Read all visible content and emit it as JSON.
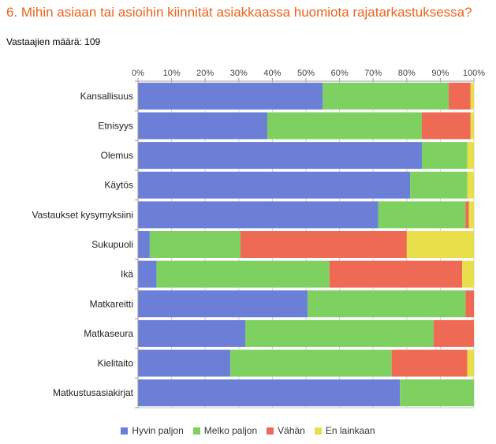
{
  "title": "6. Mihin asiaan tai asioihin kiinnität asiakkaassa huomiota rajatarkastuksessa?",
  "respondents": "Vastaajien määrä: 109",
  "chart_data": {
    "type": "bar",
    "orientation": "horizontal",
    "stacked": "percent",
    "xlim": [
      0,
      100
    ],
    "x_ticks": [
      "0%",
      "10%",
      "20%",
      "30%",
      "40%",
      "50%",
      "60%",
      "70%",
      "80%",
      "90%",
      "100%"
    ],
    "grid": true,
    "legend_position": "bottom",
    "categories": [
      "Kansallisuus",
      "Etnisyys",
      "Olemus",
      "Käytös",
      "Vastaukset kysymyksiini",
      "Sukupuoli",
      "Ikä",
      "Matkareitti",
      "Matkaseura",
      "Kielitaito",
      "Matkustusasiakirjat"
    ],
    "series": [
      {
        "name": "Hyvin paljon",
        "color": "#6b7fd6",
        "values": [
          55,
          38.5,
          84.5,
          81,
          71.5,
          3.5,
          5.5,
          50.5,
          32,
          27.5,
          78
        ]
      },
      {
        "name": "Melko paljon",
        "color": "#7ed160",
        "values": [
          37.5,
          46,
          13.5,
          17,
          26,
          27,
          51.5,
          47,
          56,
          48,
          22
        ]
      },
      {
        "name": "Vähän",
        "color": "#ee6a55",
        "values": [
          6.5,
          14.5,
          0,
          0,
          1,
          49.5,
          39.5,
          2.5,
          12,
          22.5,
          0
        ]
      },
      {
        "name": "En lainkaan",
        "color": "#e8df4a",
        "values": [
          1,
          1,
          2,
          2,
          1.5,
          20,
          3.5,
          0,
          0,
          2,
          0
        ]
      }
    ]
  }
}
